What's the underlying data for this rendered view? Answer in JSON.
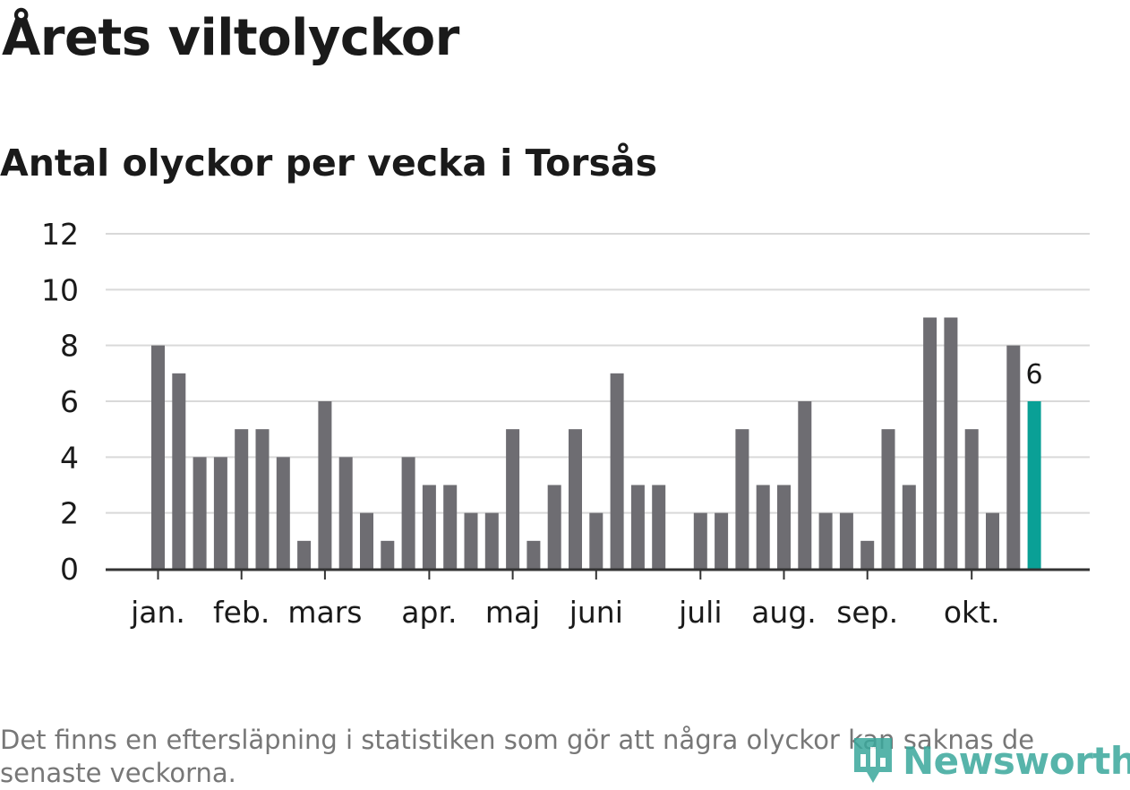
{
  "title": "Årets viltolyckor",
  "subtitle": "Antal olyckor per vecka i Torsås",
  "footnote": "Det finns en eftersläpning i statistiken som gör att några olyckor kan saknas de senaste veckorna.",
  "logo": {
    "text": "Newsworthy",
    "icon": "bar-chart-pin-icon"
  },
  "colors": {
    "bar": "#6e6d72",
    "highlight": "#0aa096",
    "grid": "#d9d9d9",
    "axis": "#333333",
    "text": "#1a1a1a"
  },
  "chart_data": {
    "type": "bar",
    "weeks": [
      1,
      2,
      3,
      4,
      5,
      6,
      7,
      8,
      9,
      10,
      11,
      12,
      13,
      14,
      15,
      16,
      17,
      18,
      19,
      20,
      21,
      22,
      23,
      24,
      25,
      26,
      27,
      28,
      29,
      30,
      31,
      32,
      33,
      34,
      35,
      36,
      37,
      38,
      39,
      40,
      41,
      42,
      43
    ],
    "values": [
      8,
      7,
      4,
      4,
      5,
      5,
      4,
      1,
      6,
      4,
      2,
      1,
      4,
      3,
      3,
      2,
      2,
      5,
      1,
      3,
      5,
      2,
      7,
      3,
      3,
      null,
      2,
      2,
      5,
      3,
      3,
      6,
      2,
      2,
      1,
      5,
      3,
      9,
      9,
      5,
      2,
      8,
      6
    ],
    "highlight_index": 42,
    "highlight_label": "6",
    "month_labels": [
      {
        "label": "jan.",
        "week": 1
      },
      {
        "label": "feb.",
        "week": 5
      },
      {
        "label": "mars",
        "week": 9
      },
      {
        "label": "apr.",
        "week": 14
      },
      {
        "label": "maj",
        "week": 18
      },
      {
        "label": "juni",
        "week": 22
      },
      {
        "label": "juli",
        "week": 27
      },
      {
        "label": "aug.",
        "week": 31
      },
      {
        "label": "sep.",
        "week": 35
      },
      {
        "label": "okt.",
        "week": 40
      }
    ],
    "y_ticks": [
      "0",
      "2",
      "4",
      "6",
      "8",
      "10",
      "12"
    ],
    "ylim": [
      0,
      12
    ],
    "grid": true
  }
}
